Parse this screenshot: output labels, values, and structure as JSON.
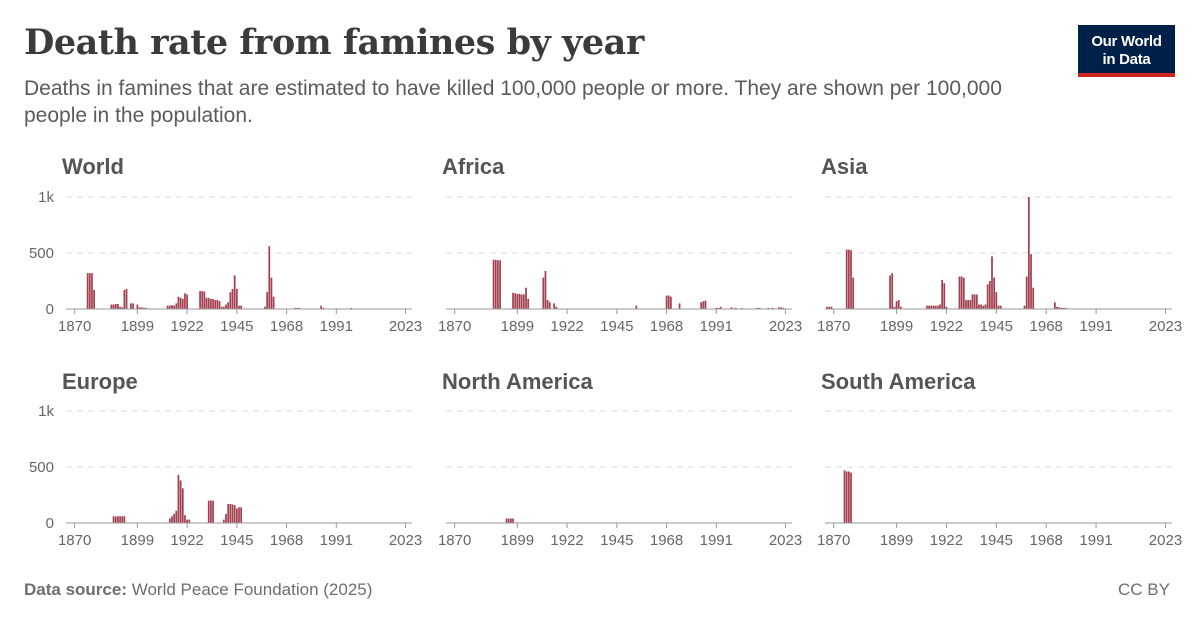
{
  "header": {
    "title": "Death rate from famines by year",
    "subtitle": "Deaths in famines that are estimated to have killed 100,000 people or more. They are shown per 100,000 people in the population.",
    "logo_line1": "Our World",
    "logo_line2": "in Data"
  },
  "footer": {
    "source_label": "Data source:",
    "source_text": "World Peace Foundation (2025)",
    "license": "CC BY"
  },
  "colors": {
    "bar": "#a2404f",
    "logo_bg": "#002147",
    "logo_accent": "#ce261e"
  },
  "chart_data": [
    {
      "type": "bar",
      "title": "World",
      "xlim": [
        1866,
        2026
      ],
      "ylim": [
        0,
        1000
      ],
      "x_ticks": [
        "1870",
        "1899",
        "1922",
        "1945",
        "1968",
        "1991",
        "2023"
      ],
      "y_ticks": [
        "0",
        "500",
        "1k"
      ],
      "series": [
        {
          "x": [
            1876,
            1877,
            1878,
            1879,
            1887,
            1888,
            1889,
            1890,
            1891,
            1892,
            1893,
            1894,
            1896,
            1897,
            1899,
            1900,
            1901,
            1902,
            1903,
            1905,
            1906,
            1907,
            1913,
            1914,
            1915,
            1916,
            1917,
            1918,
            1919,
            1920,
            1921,
            1922,
            1928,
            1929,
            1930,
            1931,
            1932,
            1933,
            1934,
            1935,
            1936,
            1937,
            1938,
            1939,
            1940,
            1941,
            1942,
            1943,
            1944,
            1945,
            1946,
            1947,
            1958,
            1959,
            1960,
            1961,
            1962,
            1972,
            1973,
            1974,
            1980,
            1984,
            1985,
            1991,
            1992,
            1993,
            1998
          ],
          "values": [
            320,
            320,
            320,
            170,
            40,
            40,
            45,
            45,
            20,
            15,
            170,
            180,
            50,
            50,
            40,
            15,
            15,
            10,
            10,
            5,
            5,
            5,
            30,
            30,
            35,
            30,
            50,
            110,
            100,
            90,
            140,
            130,
            160,
            160,
            155,
            100,
            100,
            90,
            90,
            80,
            80,
            70,
            20,
            20,
            40,
            60,
            150,
            180,
            300,
            180,
            30,
            30,
            20,
            150,
            560,
            280,
            110,
            10,
            10,
            10,
            5,
            30,
            10,
            5,
            5,
            5,
            10
          ]
        }
      ]
    },
    {
      "type": "bar",
      "title": "Africa",
      "xlim": [
        1866,
        2026
      ],
      "ylim": [
        0,
        1000
      ],
      "x_ticks": [
        "1870",
        "1899",
        "1922",
        "1945",
        "1968",
        "1991",
        "2023"
      ],
      "y_ticks": [
        "0",
        "500",
        "1k"
      ],
      "series": [
        {
          "x": [
            1888,
            1889,
            1890,
            1891,
            1897,
            1898,
            1899,
            1900,
            1901,
            1902,
            1903,
            1904,
            1911,
            1912,
            1913,
            1914,
            1916,
            1917,
            1918,
            1954,
            1968,
            1969,
            1970,
            1974,
            1984,
            1985,
            1986,
            1991,
            1992,
            1993,
            1998,
            2000,
            2003,
            2010,
            2011,
            2015,
            2017,
            2020,
            2021,
            2022
          ],
          "values": [
            440,
            440,
            435,
            435,
            145,
            140,
            135,
            135,
            130,
            130,
            190,
            90,
            280,
            340,
            80,
            60,
            50,
            20,
            5,
            30,
            120,
            120,
            110,
            50,
            60,
            70,
            75,
            10,
            10,
            20,
            15,
            10,
            10,
            10,
            10,
            10,
            10,
            15,
            15,
            10
          ]
        }
      ]
    },
    {
      "type": "bar",
      "title": "Asia",
      "xlim": [
        1866,
        2026
      ],
      "ylim": [
        0,
        1000
      ],
      "x_ticks": [
        "1870",
        "1899",
        "1922",
        "1945",
        "1968",
        "1991",
        "2023"
      ],
      "y_ticks": [
        "0",
        "500",
        "1k"
      ],
      "series": [
        {
          "x": [
            1867,
            1868,
            1869,
            1876,
            1877,
            1878,
            1879,
            1896,
            1897,
            1898,
            1899,
            1900,
            1901,
            1913,
            1914,
            1915,
            1916,
            1917,
            1918,
            1919,
            1920,
            1921,
            1922,
            1928,
            1929,
            1930,
            1931,
            1932,
            1933,
            1934,
            1935,
            1936,
            1937,
            1938,
            1939,
            1940,
            1941,
            1942,
            1943,
            1944,
            1945,
            1946,
            1947,
            1958,
            1959,
            1960,
            1961,
            1962,
            1972,
            1973,
            1974,
            1975,
            1976,
            1977
          ],
          "values": [
            20,
            20,
            20,
            530,
            530,
            525,
            280,
            300,
            320,
            20,
            70,
            80,
            20,
            30,
            30,
            30,
            30,
            30,
            30,
            40,
            260,
            230,
            20,
            290,
            290,
            280,
            80,
            80,
            80,
            130,
            130,
            130,
            40,
            40,
            30,
            40,
            220,
            250,
            470,
            280,
            150,
            30,
            30,
            30,
            290,
            1000,
            490,
            190,
            60,
            20,
            15,
            10,
            10,
            10
          ]
        }
      ]
    },
    {
      "type": "bar",
      "title": "Europe",
      "xlim": [
        1866,
        2026
      ],
      "ylim": [
        0,
        1000
      ],
      "x_ticks": [
        "1870",
        "1899",
        "1922",
        "1945",
        "1968",
        "1991",
        "2023"
      ],
      "y_ticks": [
        "0",
        "500",
        "1k"
      ],
      "series": [
        {
          "x": [
            1888,
            1889,
            1890,
            1891,
            1892,
            1893,
            1914,
            1915,
            1916,
            1917,
            1918,
            1919,
            1920,
            1921,
            1922,
            1923,
            1932,
            1933,
            1934,
            1939,
            1940,
            1941,
            1942,
            1943,
            1944,
            1945,
            1946,
            1947
          ],
          "values": [
            60,
            60,
            60,
            60,
            60,
            60,
            40,
            60,
            80,
            110,
            430,
            380,
            310,
            70,
            30,
            30,
            200,
            200,
            200,
            30,
            80,
            170,
            170,
            165,
            160,
            130,
            140,
            140
          ]
        }
      ]
    },
    {
      "type": "bar",
      "title": "North America",
      "xlim": [
        1866,
        2026
      ],
      "ylim": [
        0,
        1000
      ],
      "x_ticks": [
        "1870",
        "1899",
        "1922",
        "1945",
        "1968",
        "1991",
        "2023"
      ],
      "y_ticks": [
        "0",
        "500",
        "1k"
      ],
      "series": [
        {
          "x": [
            1894,
            1895,
            1896,
            1897
          ],
          "values": [
            40,
            40,
            40,
            40
          ]
        }
      ]
    },
    {
      "type": "bar",
      "title": "South America",
      "xlim": [
        1866,
        2026
      ],
      "ylim": [
        0,
        1000
      ],
      "x_ticks": [
        "1870",
        "1899",
        "1922",
        "1945",
        "1968",
        "1991",
        "2023"
      ],
      "y_ticks": [
        "0",
        "500",
        "1k"
      ],
      "series": [
        {
          "x": [
            1875,
            1876,
            1877,
            1878
          ],
          "values": [
            470,
            460,
            460,
            450
          ]
        }
      ]
    }
  ]
}
